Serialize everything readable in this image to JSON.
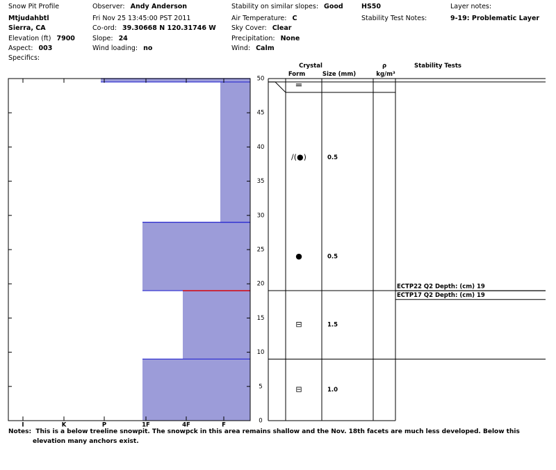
{
  "header": {
    "columns": [
      [
        {
          "label": "Snow Pit Profile"
        },
        {
          "value": "Mtjudahbtl"
        },
        {
          "value": "Sierra, CA"
        },
        {
          "label": "Elevation (ft)",
          "value": "7900"
        },
        {
          "label": "Aspect:",
          "value": "003"
        },
        {
          "label": "Specifics:"
        }
      ],
      [
        {
          "label": "Observer:",
          "value": "Andy Anderson"
        },
        {
          "label": "Fri Nov 25 13:45:00 PST 2011"
        },
        {
          "label": "Co-ord:",
          "value": "39.30668 N 120.31746 W"
        },
        {
          "label": "Slope:",
          "value": "24"
        },
        {
          "label": "Wind loading:",
          "value": "no"
        }
      ],
      [
        {
          "label": "Stability on similar slopes:",
          "value": "Good"
        },
        {
          "label": "Air Temperature:",
          "value": "C"
        },
        {
          "label": "Sky Cover:",
          "value": "Clear"
        },
        {
          "label": "Precipitation:",
          "value": "None"
        },
        {
          "label": "Wind:",
          "value": "Calm"
        }
      ],
      [
        {
          "value": "HS50"
        },
        {
          "label": "Stability Test Notes:"
        }
      ],
      [
        {
          "label": "Layer notes:"
        },
        {
          "value": "9-19: Problematic Layer"
        }
      ]
    ]
  },
  "table_header": {
    "crystal": "Crystal",
    "form": "Form",
    "size": "Size (mm)",
    "rho": "ρ",
    "density_unit": "kg/m³",
    "stability": "Stability Tests"
  },
  "height_axis": {
    "lim": [
      0,
      50
    ],
    "ticks": [
      0,
      5,
      10,
      15,
      20,
      25,
      30,
      35,
      40,
      45,
      50
    ]
  },
  "hardness_axis": {
    "ticks": [
      "I",
      "K",
      "P",
      "1F",
      "4F",
      "F"
    ]
  },
  "layers": [
    {
      "bottom": 0,
      "top": 9,
      "hardness": "1F",
      "form": "⊟",
      "size": "1.0",
      "line_color": "#2a2ad0"
    },
    {
      "bottom": 9,
      "top": 19,
      "hardness": "4F",
      "form": "⊟",
      "size": "1.5",
      "line_color": "#e00000"
    },
    {
      "bottom": 19,
      "top": 29,
      "hardness": "1F",
      "form": "●",
      "size": "0.5",
      "line_color": "#2a2ad0"
    },
    {
      "bottom": 29,
      "top": 49.5,
      "hardness": "F",
      "form": "/(●)",
      "size": "0.5",
      "line_color": "#2a2ad0"
    },
    {
      "bottom": 49.5,
      "top": 50,
      "hardness": "P",
      "form": "=",
      "line_color": "#2a2ad0"
    }
  ],
  "layer_fill": "#9c9cd9",
  "stability_tests": [
    {
      "text": "ECTP22 Q2 Depth: (cm) 19",
      "depth": 19
    },
    {
      "text": "ECTP17 Q2 Depth: (cm) 19",
      "depth": 19
    }
  ],
  "notes": {
    "label": "Notes:",
    "text": "This is a below treeline snowpit. The snowpck in this area remains shallow and the Nov. 18th facets are much less developed. Below this elevation many anchors exist."
  }
}
